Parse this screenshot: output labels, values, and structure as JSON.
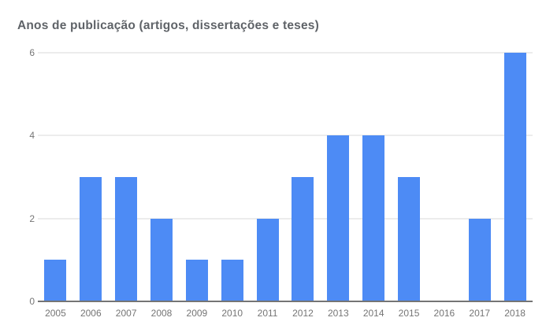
{
  "chart_data": {
    "type": "bar",
    "title": "Anos de publicação (artigos, dissertações e teses)",
    "categories": [
      "2005",
      "2006",
      "2007",
      "2008",
      "2009",
      "2010",
      "2011",
      "2012",
      "2013",
      "2014",
      "2015",
      "2016",
      "2017",
      "2018"
    ],
    "values": [
      1,
      3,
      3,
      2,
      1,
      1,
      2,
      3,
      4,
      4,
      3,
      0,
      2,
      6
    ],
    "xlabel": "",
    "ylabel": "",
    "ylim": [
      0,
      6
    ],
    "yticks": [
      0,
      2,
      4,
      6
    ],
    "grid": true,
    "legend": "none"
  },
  "colors": {
    "bar": "#4d8bf5",
    "title_text": "#5f6368",
    "axis_text": "#757575",
    "gridline": "#d9d9d9",
    "baseline": "#757575",
    "background": "#ffffff"
  }
}
